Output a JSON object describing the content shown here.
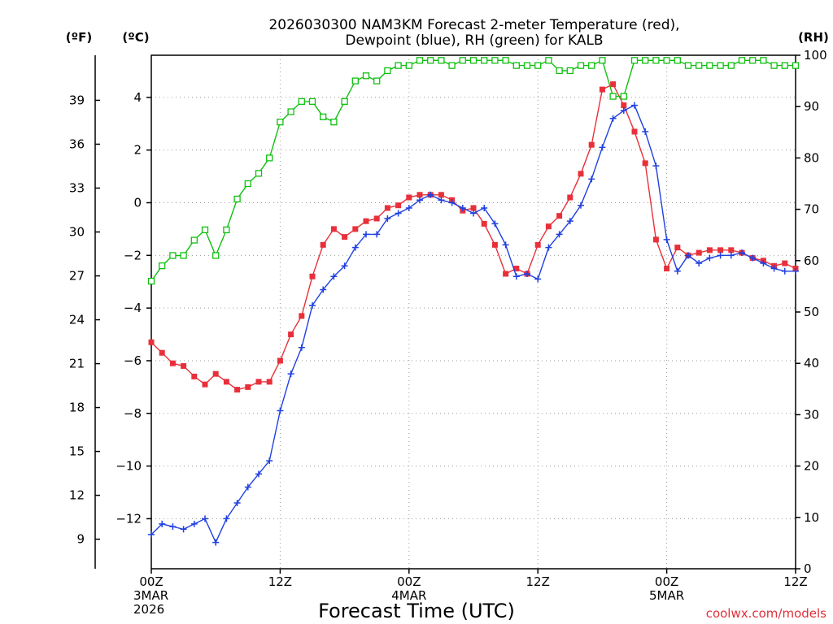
{
  "chart_data": {
    "type": "line",
    "title_line1": "2026030300 NAM3KM Forecast 2-meter Temperature (red),",
    "title_line2": "Dewpoint (blue), RH (green) for KALB",
    "xlabel": "Forecast Time (UTC)",
    "credit": "coolwx.com/models",
    "unit_f": "(ºF)",
    "unit_c": "(ºC)",
    "unit_rh": "(RH)",
    "x_unit": "forecast hour",
    "xlim": [
      0,
      60
    ],
    "ylim_c": [
      -13.9,
      5.6
    ],
    "ylim_rh": [
      0,
      100
    ],
    "yticks_c": [
      {
        "value": 4,
        "label": "4"
      },
      {
        "value": 2,
        "label": "2"
      },
      {
        "value": 0,
        "label": "0"
      },
      {
        "value": -2,
        "label": "−2"
      },
      {
        "value": -4,
        "label": "−4"
      },
      {
        "value": -6,
        "label": "−6"
      },
      {
        "value": -8,
        "label": "−8"
      },
      {
        "value": -10,
        "label": "−10"
      },
      {
        "value": -12,
        "label": "−12"
      }
    ],
    "yticks_f": [
      {
        "value": 39,
        "label": "39"
      },
      {
        "value": 36,
        "label": "36"
      },
      {
        "value": 33,
        "label": "33"
      },
      {
        "value": 30,
        "label": "30"
      },
      {
        "value": 27,
        "label": "27"
      },
      {
        "value": 24,
        "label": "24"
      },
      {
        "value": 21,
        "label": "21"
      },
      {
        "value": 18,
        "label": "18"
      },
      {
        "value": 15,
        "label": "15"
      },
      {
        "value": 12,
        "label": "12"
      },
      {
        "value": 9,
        "label": "9"
      }
    ],
    "yticks_rh": [
      {
        "value": 100,
        "label": "100"
      },
      {
        "value": 90,
        "label": "90"
      },
      {
        "value": 80,
        "label": "80"
      },
      {
        "value": 70,
        "label": "70"
      },
      {
        "value": 60,
        "label": "60"
      },
      {
        "value": 50,
        "label": "50"
      },
      {
        "value": 40,
        "label": "40"
      },
      {
        "value": 30,
        "label": "30"
      },
      {
        "value": 20,
        "label": "20"
      },
      {
        "value": 10,
        "label": "10"
      },
      {
        "value": 0,
        "label": "0"
      }
    ],
    "xticks": [
      {
        "hour": 0,
        "lines": [
          "00Z",
          "3MAR",
          "2026"
        ]
      },
      {
        "hour": 12,
        "lines": [
          "12Z"
        ]
      },
      {
        "hour": 24,
        "lines": [
          "00Z",
          "4MAR"
        ]
      },
      {
        "hour": 36,
        "lines": [
          "12Z"
        ]
      },
      {
        "hour": 48,
        "lines": [
          "00Z",
          "5MAR"
        ]
      },
      {
        "hour": 60,
        "lines": [
          "12Z"
        ]
      }
    ],
    "series": [
      {
        "name": "Temperature (°C)",
        "color": "#e8303a",
        "marker": "filled-square",
        "axis": "c",
        "x": [
          0,
          1,
          2,
          3,
          4,
          5,
          6,
          7,
          8,
          9,
          10,
          11,
          12,
          13,
          14,
          15,
          16,
          17,
          18,
          19,
          20,
          21,
          22,
          23,
          24,
          25,
          26,
          27,
          28,
          29,
          30,
          31,
          32,
          33,
          34,
          35,
          36,
          37,
          38,
          39,
          40,
          41,
          42,
          43,
          44,
          45,
          46,
          47,
          48,
          49,
          50,
          51,
          52,
          53,
          54,
          55,
          56,
          57,
          58,
          59,
          60
        ],
        "values": [
          -5.3,
          -5.7,
          -6.1,
          -6.2,
          -6.6,
          -6.9,
          -6.5,
          -6.8,
          -7.1,
          -7.0,
          -6.8,
          -6.8,
          -6.0,
          -5.0,
          -4.3,
          -2.8,
          -1.6,
          -1.0,
          -1.3,
          -1.0,
          -0.7,
          -0.6,
          -0.2,
          -0.1,
          0.2,
          0.3,
          0.3,
          0.3,
          0.1,
          -0.3,
          -0.2,
          -0.8,
          -1.6,
          -2.7,
          -2.5,
          -2.7,
          -1.6,
          -0.9,
          -0.5,
          0.2,
          1.1,
          2.2,
          4.3,
          4.5,
          3.7,
          2.7,
          1.5,
          -1.4,
          -2.5,
          -1.7,
          -2.0,
          -1.9,
          -1.8,
          -1.8,
          -1.8,
          -1.9,
          -2.1,
          -2.2,
          -2.4,
          -2.3,
          -2.5
        ]
      },
      {
        "name": "Dewpoint (°C)",
        "color": "#2040e0",
        "marker": "plus",
        "axis": "c",
        "x": [
          0,
          1,
          2,
          3,
          4,
          5,
          6,
          7,
          8,
          9,
          10,
          11,
          12,
          13,
          14,
          15,
          16,
          17,
          18,
          19,
          20,
          21,
          22,
          23,
          24,
          25,
          26,
          27,
          28,
          29,
          30,
          31,
          32,
          33,
          34,
          35,
          36,
          37,
          38,
          39,
          40,
          41,
          42,
          43,
          44,
          45,
          46,
          47,
          48,
          49,
          50,
          51,
          52,
          53,
          54,
          55,
          56,
          57,
          58,
          59,
          60
        ],
        "values": [
          -12.6,
          -12.2,
          -12.3,
          -12.4,
          -12.2,
          -12.0,
          -12.9,
          -12.0,
          -11.4,
          -10.8,
          -10.3,
          -9.8,
          -7.9,
          -6.5,
          -5.5,
          -3.9,
          -3.3,
          -2.8,
          -2.4,
          -1.7,
          -1.2,
          -1.2,
          -0.6,
          -0.4,
          -0.2,
          0.1,
          0.3,
          0.1,
          0.0,
          -0.2,
          -0.4,
          -0.2,
          -0.8,
          -1.6,
          -2.8,
          -2.7,
          -2.9,
          -1.7,
          -1.2,
          -0.7,
          -0.1,
          0.9,
          2.1,
          3.2,
          3.5,
          3.7,
          2.7,
          1.4,
          -1.4,
          -2.6,
          -2.0,
          -2.3,
          -2.1,
          -2.0,
          -2.0,
          -1.9,
          -2.1,
          -2.3,
          -2.5,
          -2.6,
          -2.6
        ]
      },
      {
        "name": "Relative Humidity (%)",
        "color": "#10c010",
        "marker": "open-square",
        "axis": "rh",
        "x": [
          0,
          1,
          2,
          3,
          4,
          5,
          6,
          7,
          8,
          9,
          10,
          11,
          12,
          13,
          14,
          15,
          16,
          17,
          18,
          19,
          20,
          21,
          22,
          23,
          24,
          25,
          26,
          27,
          28,
          29,
          30,
          31,
          32,
          33,
          34,
          35,
          36,
          37,
          38,
          39,
          40,
          41,
          42,
          43,
          44,
          45,
          46,
          47,
          48,
          49,
          50,
          51,
          52,
          53,
          54,
          55,
          56,
          57,
          58,
          59,
          60
        ],
        "values": [
          56,
          59,
          61,
          61,
          64,
          66,
          61,
          66,
          72,
          75,
          77,
          80,
          87,
          89,
          91,
          91,
          88,
          87,
          91,
          95,
          96,
          95,
          97,
          98,
          98,
          99,
          99,
          99,
          98,
          99,
          99,
          99,
          99,
          99,
          98,
          98,
          98,
          99,
          97,
          97,
          98,
          98,
          99,
          92,
          92,
          99,
          99,
          99,
          99,
          99,
          98,
          98,
          98,
          98,
          98,
          99,
          99,
          99,
          98,
          98,
          98
        ]
      }
    ]
  }
}
